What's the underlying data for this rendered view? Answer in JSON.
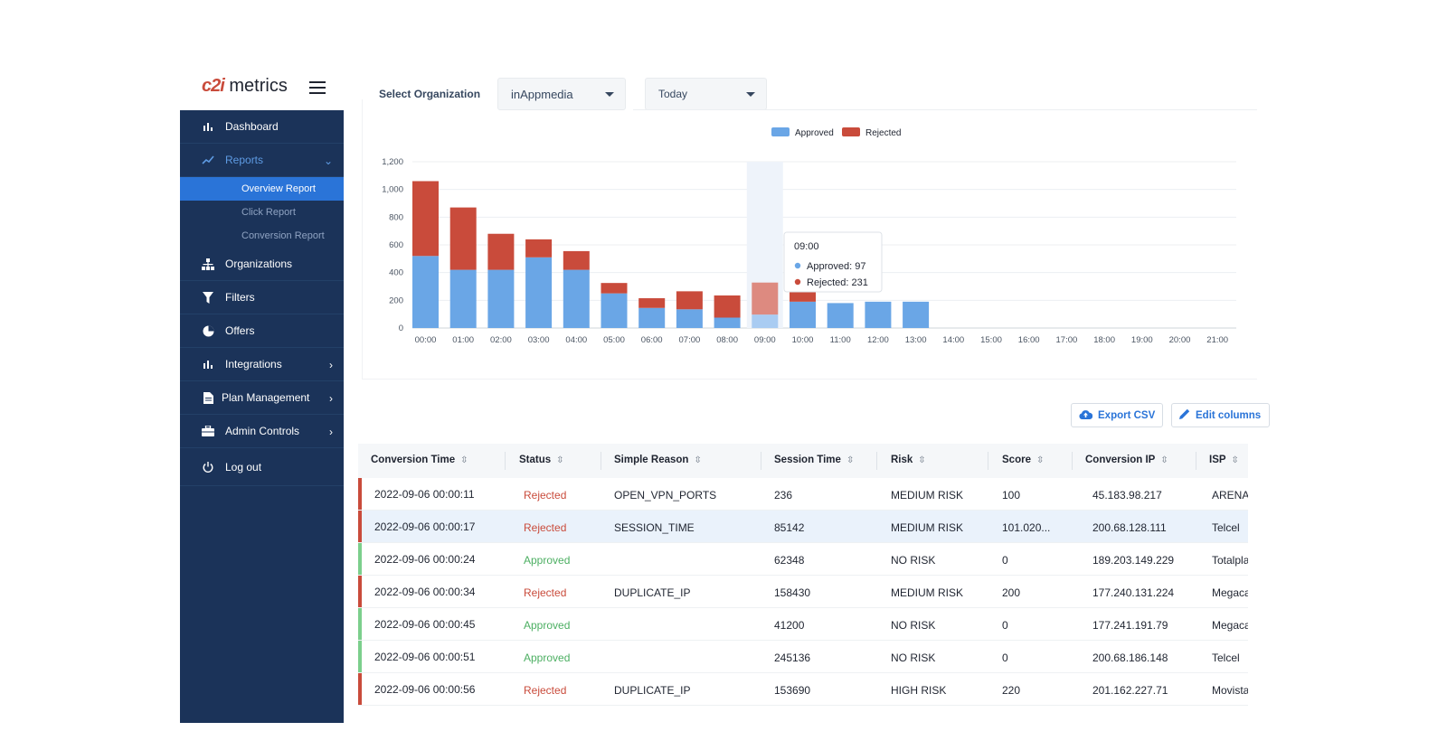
{
  "logo": {
    "mark": "c2i",
    "text": "metrics"
  },
  "sidebar": {
    "items": [
      {
        "label": "Dashboard",
        "icon": "bar-chart-icon"
      },
      {
        "label": "Reports",
        "icon": "trending-icon"
      },
      {
        "label": "Organizations",
        "icon": "sitemap-icon"
      },
      {
        "label": "Filters",
        "icon": "filter-icon"
      },
      {
        "label": "Offers",
        "icon": "pie-chart-icon"
      },
      {
        "label": "Integrations",
        "icon": "bar-chart-icon"
      },
      {
        "label": "Plan Management",
        "icon": "document-icon"
      },
      {
        "label": "Admin Controls",
        "icon": "toolbox-icon"
      },
      {
        "label": "Log out",
        "icon": "power-icon"
      }
    ],
    "reports_sub": [
      "Overview Report",
      "Click Report",
      "Conversion Report"
    ]
  },
  "filters": {
    "org_label": "Select Organization",
    "org_value": "inAppmedia",
    "period_value": "Today"
  },
  "chart_data": {
    "type": "bar",
    "stacked": true,
    "categories": [
      "00:00",
      "01:00",
      "02:00",
      "03:00",
      "04:00",
      "05:00",
      "06:00",
      "07:00",
      "08:00",
      "09:00",
      "10:00",
      "11:00",
      "12:00",
      "13:00",
      "14:00",
      "15:00",
      "16:00",
      "17:00",
      "18:00",
      "19:00",
      "20:00",
      "21:00"
    ],
    "series": [
      {
        "name": "Approved",
        "color": "#6aa6e6",
        "values": [
          520,
          420,
          420,
          510,
          420,
          250,
          145,
          135,
          75,
          97,
          190,
          180,
          190,
          190,
          0,
          0,
          0,
          0,
          0,
          0,
          0,
          0
        ]
      },
      {
        "name": "Rejected",
        "color": "#c94b3b",
        "values": [
          540,
          450,
          260,
          130,
          135,
          75,
          70,
          130,
          160,
          231,
          170,
          0,
          0,
          0,
          0,
          0,
          0,
          0,
          0,
          0,
          0,
          0
        ]
      }
    ],
    "ylim": [
      0,
      1200
    ],
    "yticks": [
      "0",
      "200",
      "400",
      "600",
      "800",
      "1,000",
      "1,200"
    ],
    "grid": true,
    "legend": "top-center",
    "tooltip": {
      "title": "09:00",
      "lines": [
        "Approved: 97",
        "Rejected: 231"
      ]
    }
  },
  "actions": {
    "export": "Export CSV",
    "edit": "Edit columns"
  },
  "table": {
    "columns": [
      "Conversion Time",
      "Status",
      "Simple Reason",
      "Session Time",
      "Risk",
      "Score",
      "Conversion IP",
      "ISP"
    ],
    "rows": [
      [
        "2022-09-06 00:00:11",
        "Rejected",
        "OPEN_VPN_PORTS",
        "236",
        "MEDIUM RISK",
        "100",
        "45.183.98.217",
        "ARENA TELE"
      ],
      [
        "2022-09-06 00:00:17",
        "Rejected",
        "SESSION_TIME",
        "85142",
        "MEDIUM RISK",
        "101.020...",
        "200.68.128.111",
        "Telcel"
      ],
      [
        "2022-09-06 00:00:24",
        "Approved",
        "",
        "62348",
        "NO RISK",
        "0",
        "189.203.149.229",
        "Totalplay"
      ],
      [
        "2022-09-06 00:00:34",
        "Rejected",
        "DUPLICATE_IP",
        "158430",
        "MEDIUM RISK",
        "200",
        "177.240.131.224",
        "Megacable"
      ],
      [
        "2022-09-06 00:00:45",
        "Approved",
        "",
        "41200",
        "NO RISK",
        "0",
        "177.241.191.79",
        "Megacable"
      ],
      [
        "2022-09-06 00:00:51",
        "Approved",
        "",
        "245136",
        "NO RISK",
        "0",
        "200.68.186.148",
        "Telcel"
      ],
      [
        "2022-09-06 00:00:56",
        "Rejected",
        "DUPLICATE_IP",
        "153690",
        "HIGH RISK",
        "220",
        "201.162.227.71",
        "Movistar Me:"
      ]
    ]
  }
}
